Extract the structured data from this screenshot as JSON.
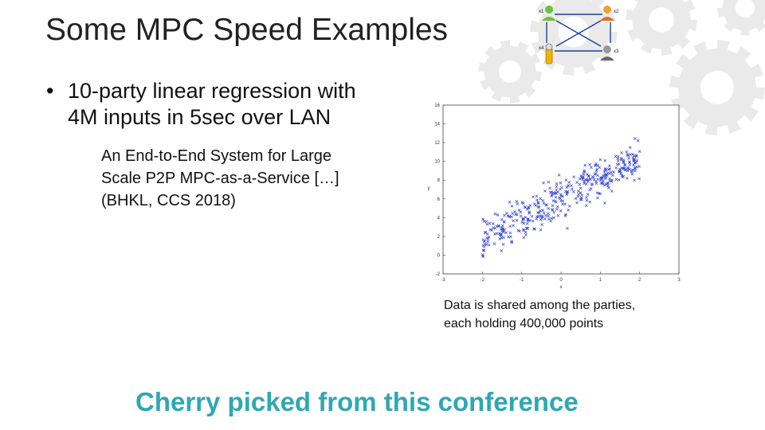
{
  "slide": {
    "title": "Some MPC Speed Examples",
    "bullet_symbol": "•",
    "bullet_line1": "10-party linear regression with",
    "bullet_line2": "4M inputs in 5sec over LAN",
    "reference_line1": "An End-to-End System for Large",
    "reference_line2": "Scale P2P MPC-as-a-Service […]",
    "reference_line3": "(BHKL, CCS 2018)",
    "caption_line1": "Data is shared among the parties,",
    "caption_line2": "each holding 400,000 points",
    "footer": "Cherry picked from this conference",
    "footer_color": "#2ea8b3"
  },
  "network_icon": {
    "party_labels": [
      "x1",
      "x2",
      "x3",
      "x4"
    ],
    "icons": [
      "person-green-icon",
      "person-orange-icon",
      "person-gray-icon",
      "key-icon"
    ]
  },
  "chart_data": {
    "type": "scatter",
    "xlabel": "x",
    "ylabel": "y",
    "xlim": [
      -3,
      3
    ],
    "ylim": [
      -2,
      16
    ],
    "x_ticks": [
      "-3",
      "-2",
      "-1",
      "0",
      "1",
      "2",
      "3"
    ],
    "y_ticks": [
      "-2",
      "0",
      "2",
      "4",
      "6",
      "8",
      "10",
      "12",
      "14",
      "16"
    ],
    "marker": "x",
    "marker_color": "#3344cc",
    "trend": {
      "intercept": 6,
      "slope": 2.1,
      "spread": 1.6
    },
    "x_range": [
      -2,
      2
    ],
    "n_points": 400
  }
}
